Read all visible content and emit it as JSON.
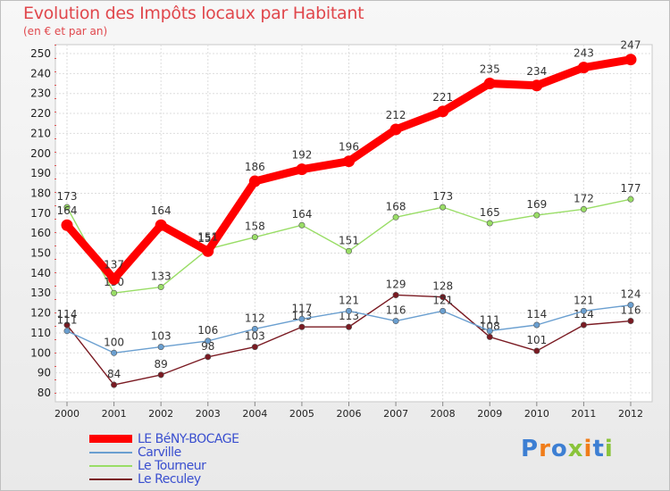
{
  "chart_data": {
    "type": "line",
    "title": "Evolution des Impôts locaux par Habitant",
    "subtitle": "(en € et par an)",
    "x": [
      "2000",
      "2001",
      "2002",
      "2003",
      "2004",
      "2005",
      "2006",
      "2007",
      "2008",
      "2009",
      "2010",
      "2011",
      "2012"
    ],
    "ylim": [
      80,
      250
    ],
    "yticks": [
      80,
      90,
      100,
      110,
      120,
      130,
      140,
      150,
      160,
      170,
      180,
      190,
      200,
      210,
      220,
      230,
      240,
      250
    ],
    "grid": true,
    "legend_position": "bottom-left",
    "series": [
      {
        "name": "LE BéNY-BOCAGE",
        "color": "#ff0000",
        "values": [
          164,
          137,
          164,
          151,
          186,
          192,
          196,
          212,
          221,
          235,
          234,
          243,
          247
        ]
      },
      {
        "name": "Carville",
        "color": "#6a9fd0",
        "values": [
          111,
          100,
          103,
          106,
          112,
          117,
          121,
          116,
          121,
          111,
          114,
          121,
          124
        ]
      },
      {
        "name": "Le Tourneur",
        "color": "#99dd66",
        "values": [
          173,
          130,
          133,
          152,
          158,
          164,
          151,
          168,
          173,
          165,
          169,
          172,
          177
        ]
      },
      {
        "name": "Le Reculey",
        "color": "#7a1a22",
        "values": [
          114,
          84,
          89,
          98,
          103,
          113,
          113,
          129,
          128,
          108,
          101,
          114,
          116
        ]
      }
    ]
  },
  "logo": {
    "letters": [
      "P",
      "r",
      "o",
      "x",
      "i",
      "t",
      "i"
    ],
    "colors": [
      "#3d7fd3",
      "#f07d1a",
      "#3d7fd3",
      "#8ac43a",
      "#f07d1a",
      "#3d7fd3",
      "#8ac43a"
    ]
  }
}
